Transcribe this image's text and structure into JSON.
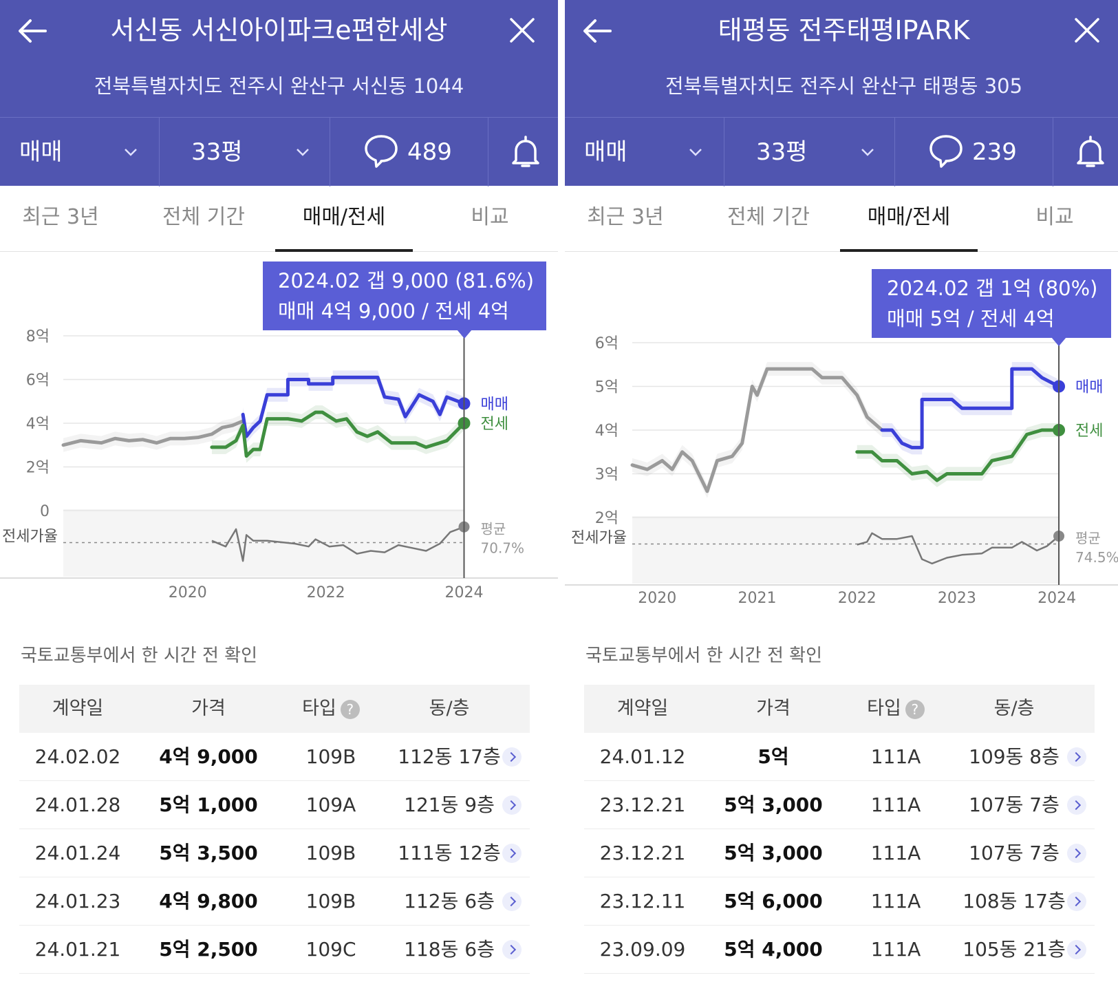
{
  "screens": [
    {
      "title": "서신동 서신아이파크e편한세상",
      "address": "전북특별자치도 전주시 완산구 서신동 1044",
      "deal_type": "매매",
      "size": "33평",
      "comment_count": "489",
      "tabs": [
        "최근 3년",
        "전체 기간",
        "매매/전세",
        "비교"
      ],
      "active_tab": "매매/전세",
      "tooltip": {
        "line1": "2024.02  갭 9,000 (81.6%)",
        "line2": "매매 4억 9,000 / 전세 4억"
      },
      "source_note": "국토교통부에서 한 시간 전 확인",
      "table_headers": [
        "계약일",
        "가격",
        "타입",
        "동/층"
      ],
      "help_icon": "?",
      "rows": [
        {
          "date": "24.02.02",
          "price": "4억 9,000",
          "type": "109B",
          "unit": "112동 17층"
        },
        {
          "date": "24.01.28",
          "price": "5억 1,000",
          "type": "109A",
          "unit": "121동 9층"
        },
        {
          "date": "24.01.24",
          "price": "5억 3,500",
          "type": "109B",
          "unit": "111동 12층"
        },
        {
          "date": "24.01.23",
          "price": "4억 9,800",
          "type": "109B",
          "unit": "112동 6층"
        },
        {
          "date": "24.01.21",
          "price": "5억 2,500",
          "type": "109C",
          "unit": "118동 6층"
        }
      ]
    },
    {
      "title": "태평동 전주태평IPARK",
      "address": "전북특별자치도 전주시 완산구 태평동 305",
      "deal_type": "매매",
      "size": "33평",
      "comment_count": "239",
      "tabs": [
        "최근 3년",
        "전체 기간",
        "매매/전세",
        "비교"
      ],
      "active_tab": "매매/전세",
      "tooltip": {
        "line1": "2024.02  갭 1억 (80%)",
        "line2": "매매 5억 / 전세 4억"
      },
      "source_note": "국토교통부에서 한 시간 전 확인",
      "table_headers": [
        "계약일",
        "가격",
        "타입",
        "동/층"
      ],
      "help_icon": "?",
      "rows": [
        {
          "date": "24.01.12",
          "price": "5억",
          "type": "111A",
          "unit": "109동 8층"
        },
        {
          "date": "23.12.21",
          "price": "5억 3,000",
          "type": "111A",
          "unit": "107동 7층"
        },
        {
          "date": "23.12.21",
          "price": "5억 3,000",
          "type": "111A",
          "unit": "107동 7층"
        },
        {
          "date": "23.12.11",
          "price": "5억 6,000",
          "type": "111A",
          "unit": "108동 17층"
        },
        {
          "date": "23.09.09",
          "price": "5억 4,000",
          "type": "111A",
          "unit": "105동 21층"
        }
      ]
    }
  ],
  "colors": {
    "header_bg": "#5055b0",
    "tooltip_bg": "#5a5ed6",
    "sale_line": "#3a3fd8",
    "jeonse_line": "#3f8f3f",
    "history_line": "#9a9a9a"
  },
  "chart_data": [
    {
      "type": "line",
      "unit": "억",
      "ylim": [
        0,
        8
      ],
      "y_ticks": [
        "0",
        "2억",
        "4억",
        "6억",
        "8억"
      ],
      "y_tick_values": [
        0,
        2,
        4,
        6,
        8
      ],
      "x_ticks": [
        "2020",
        "2022",
        "2024"
      ],
      "x_tick_values": [
        2020,
        2022,
        2024
      ],
      "xlim": [
        2018.25,
        2025.2
      ],
      "ratio_label": "전세가율",
      "avg_label": "평균",
      "avg_ratio": "70.7%",
      "selected_x": 2024.05,
      "series": [
        {
          "name": "",
          "role": "history",
          "x": [
            2018.25,
            2018.5,
            2018.8,
            2019.0,
            2019.2,
            2019.4,
            2019.6,
            2019.8,
            2020.0,
            2020.2,
            2020.4,
            2020.55,
            2020.7,
            2020.85
          ],
          "y": [
            3.0,
            3.2,
            3.1,
            3.3,
            3.2,
            3.25,
            3.1,
            3.3,
            3.3,
            3.35,
            3.5,
            3.8,
            3.9,
            4.1
          ]
        },
        {
          "name": "매매",
          "x": [
            2020.85,
            2020.9,
            2021.0,
            2021.1,
            2021.2,
            2021.5,
            2021.5,
            2021.8,
            2021.8,
            2022.15,
            2022.15,
            2022.4,
            2022.4,
            2022.8,
            2022.9,
            2023.1,
            2023.2,
            2023.4,
            2023.6,
            2023.7,
            2023.8,
            2024.05
          ],
          "y": [
            4.4,
            3.4,
            3.8,
            4.1,
            5.3,
            5.3,
            6.0,
            6.0,
            5.8,
            5.8,
            6.1,
            6.1,
            6.1,
            6.1,
            5.2,
            5.1,
            4.3,
            5.3,
            5.0,
            4.4,
            5.2,
            4.9
          ]
        },
        {
          "name": "전세",
          "x": [
            2020.4,
            2020.6,
            2020.75,
            2020.85,
            2020.9,
            2021.0,
            2021.1,
            2021.2,
            2021.5,
            2021.7,
            2021.9,
            2022.0,
            2022.2,
            2022.35,
            2022.5,
            2022.65,
            2022.8,
            2023.0,
            2023.2,
            2023.35,
            2023.5,
            2023.7,
            2023.8,
            2024.05
          ],
          "y": [
            2.9,
            2.9,
            3.2,
            3.9,
            2.5,
            2.8,
            2.8,
            4.2,
            4.2,
            4.1,
            4.5,
            4.5,
            4.1,
            4.2,
            3.6,
            3.4,
            3.6,
            3.1,
            3.1,
            3.1,
            2.9,
            3.1,
            3.2,
            4.0
          ]
        }
      ],
      "ratio": {
        "x": [
          2020.4,
          2020.6,
          2020.75,
          2020.85,
          2020.9,
          2021.0,
          2021.2,
          2021.4,
          2021.6,
          2021.8,
          2021.9,
          2022.1,
          2022.3,
          2022.5,
          2022.7,
          2022.9,
          2023.1,
          2023.3,
          2023.5,
          2023.7,
          2023.85,
          2024.05
        ],
        "y": [
          72,
          68,
          80,
          58,
          76,
          72,
          72,
          71,
          70,
          68,
          73,
          68,
          69,
          63,
          65,
          64,
          69,
          67,
          65,
          70,
          78,
          81.6
        ]
      }
    },
    {
      "type": "line",
      "unit": "억",
      "ylim": [
        2,
        6
      ],
      "y_ticks": [
        "2억",
        "3억",
        "4억",
        "5억",
        "6억"
      ],
      "y_tick_values": [
        2,
        3,
        4,
        5,
        6
      ],
      "x_ticks": [
        "2020",
        "2021",
        "2022",
        "2023",
        "2024"
      ],
      "x_tick_values": [
        2020,
        2021,
        2022,
        2023,
        2024
      ],
      "xlim": [
        2019.8,
        2024.6
      ],
      "ratio_label": "전세가율",
      "avg_label": "평균",
      "avg_ratio": "74.5%",
      "selected_x": 2024.07,
      "series": [
        {
          "name": "",
          "role": "history",
          "x": [
            2019.8,
            2019.95,
            2020.1,
            2020.2,
            2020.3,
            2020.4,
            2020.55,
            2020.65,
            2020.8,
            2020.9,
            2021.0,
            2021.05,
            2021.15,
            2021.3,
            2021.6,
            2021.7,
            2021.9,
            2022.05,
            2022.15,
            2022.3
          ],
          "y": [
            3.2,
            3.1,
            3.3,
            3.1,
            3.5,
            3.3,
            2.6,
            3.3,
            3.4,
            3.7,
            5.0,
            4.8,
            5.4,
            5.4,
            5.4,
            5.2,
            5.2,
            4.8,
            4.3,
            4.0
          ]
        },
        {
          "name": "매매",
          "x": [
            2022.3,
            2022.4,
            2022.5,
            2022.6,
            2022.7,
            2022.7,
            2023.0,
            2023.1,
            2023.6,
            2023.6,
            2023.8,
            2023.9,
            2024.07
          ],
          "y": [
            4.0,
            4.0,
            3.7,
            3.6,
            3.6,
            4.7,
            4.7,
            4.5,
            4.5,
            5.4,
            5.4,
            5.2,
            5.0
          ]
        },
        {
          "name": "전세",
          "x": [
            2022.05,
            2022.2,
            2022.3,
            2022.45,
            2022.6,
            2022.75,
            2022.85,
            2022.95,
            2023.1,
            2023.3,
            2023.4,
            2023.6,
            2023.75,
            2023.9,
            2024.07
          ],
          "y": [
            3.5,
            3.5,
            3.3,
            3.3,
            3.0,
            3.05,
            2.85,
            3.0,
            3.0,
            3.0,
            3.3,
            3.4,
            3.9,
            4.0,
            4.0
          ]
        }
      ],
      "ratio": {
        "x": [
          2022.05,
          2022.15,
          2022.2,
          2022.3,
          2022.45,
          2022.6,
          2022.7,
          2022.8,
          2022.95,
          2023.1,
          2023.3,
          2023.4,
          2023.6,
          2023.7,
          2023.85,
          2023.95,
          2024.07
        ],
        "y": [
          74,
          76,
          82,
          78,
          78,
          80,
          64,
          61,
          65,
          67,
          68,
          72,
          72,
          76,
          70,
          73,
          80
        ]
      }
    }
  ]
}
